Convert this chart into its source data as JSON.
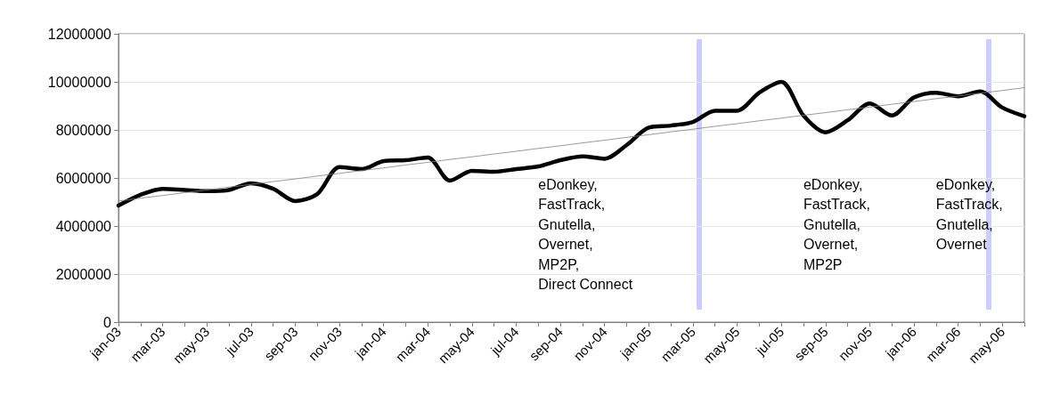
{
  "chart_data": {
    "type": "line",
    "categories": [
      "jan-03",
      null,
      "mar-03",
      null,
      "may-03",
      null,
      "jul-03",
      null,
      "sep-03",
      null,
      "nov-03",
      null,
      "jan-04",
      null,
      "mar-04",
      null,
      "may-04",
      null,
      "jul-04",
      null,
      "sep-04",
      null,
      "nov-04",
      null,
      "jan-05",
      null,
      "mar-05",
      null,
      "may-05",
      null,
      "jul-05",
      null,
      "sep-05",
      null,
      "nov-05",
      null,
      "jan-06",
      null,
      "mar-06",
      null,
      "may-06",
      null
    ],
    "ylim": [
      0,
      12000000
    ],
    "yticks": [
      0,
      2000000,
      4000000,
      6000000,
      8000000,
      10000000,
      12000000
    ],
    "grid": "y",
    "marker": "none",
    "line_style": "solid",
    "series": [
      {
        "color": "#000000",
        "values": [
          4850000,
          5300000,
          5550000,
          5500000,
          5450000,
          5500000,
          5780000,
          5550000,
          5040000,
          5330000,
          6450000,
          6370000,
          6700000,
          6740000,
          6850000,
          5890000,
          6300000,
          6260000,
          6370000,
          6480000,
          6740000,
          6900000,
          6800000,
          7370000,
          8100000,
          8180000,
          8330000,
          8800000,
          8800000,
          9550000,
          10000000,
          8600000,
          7900000,
          8400000,
          9100000,
          8600000,
          9350000,
          9550000,
          9400000,
          9600000,
          8930000,
          8570000
        ]
      },
      {
        "color": "#808080",
        "values": [
          5040000,
          5160000,
          5270000,
          5390000,
          5500000,
          5620000,
          5730000,
          5850000,
          5960000,
          6080000,
          6190000,
          6310000,
          6420000,
          6540000,
          6650000,
          6770000,
          6880000,
          7000000,
          7110000,
          7230000,
          7340000,
          7460000,
          7570000,
          7690000,
          7800000,
          7920000,
          8030000,
          8150000,
          8260000,
          8380000,
          8490000,
          8610000,
          8720000,
          8840000,
          8950000,
          9070000,
          9180000,
          9300000,
          9410000,
          9530000,
          9640000,
          9760000
        ]
      }
    ],
    "annotations": [
      "eDonkey,\nFastTrack,\nGnutella,\nOvernet,\nMP2P,\nDirect Connect",
      "eDonkey,\nFastTrack,\nGnutella,\nOvernet,\nMP2P",
      "eDonkey,\nFastTrack,\nGnutella,\nOvernet"
    ]
  }
}
